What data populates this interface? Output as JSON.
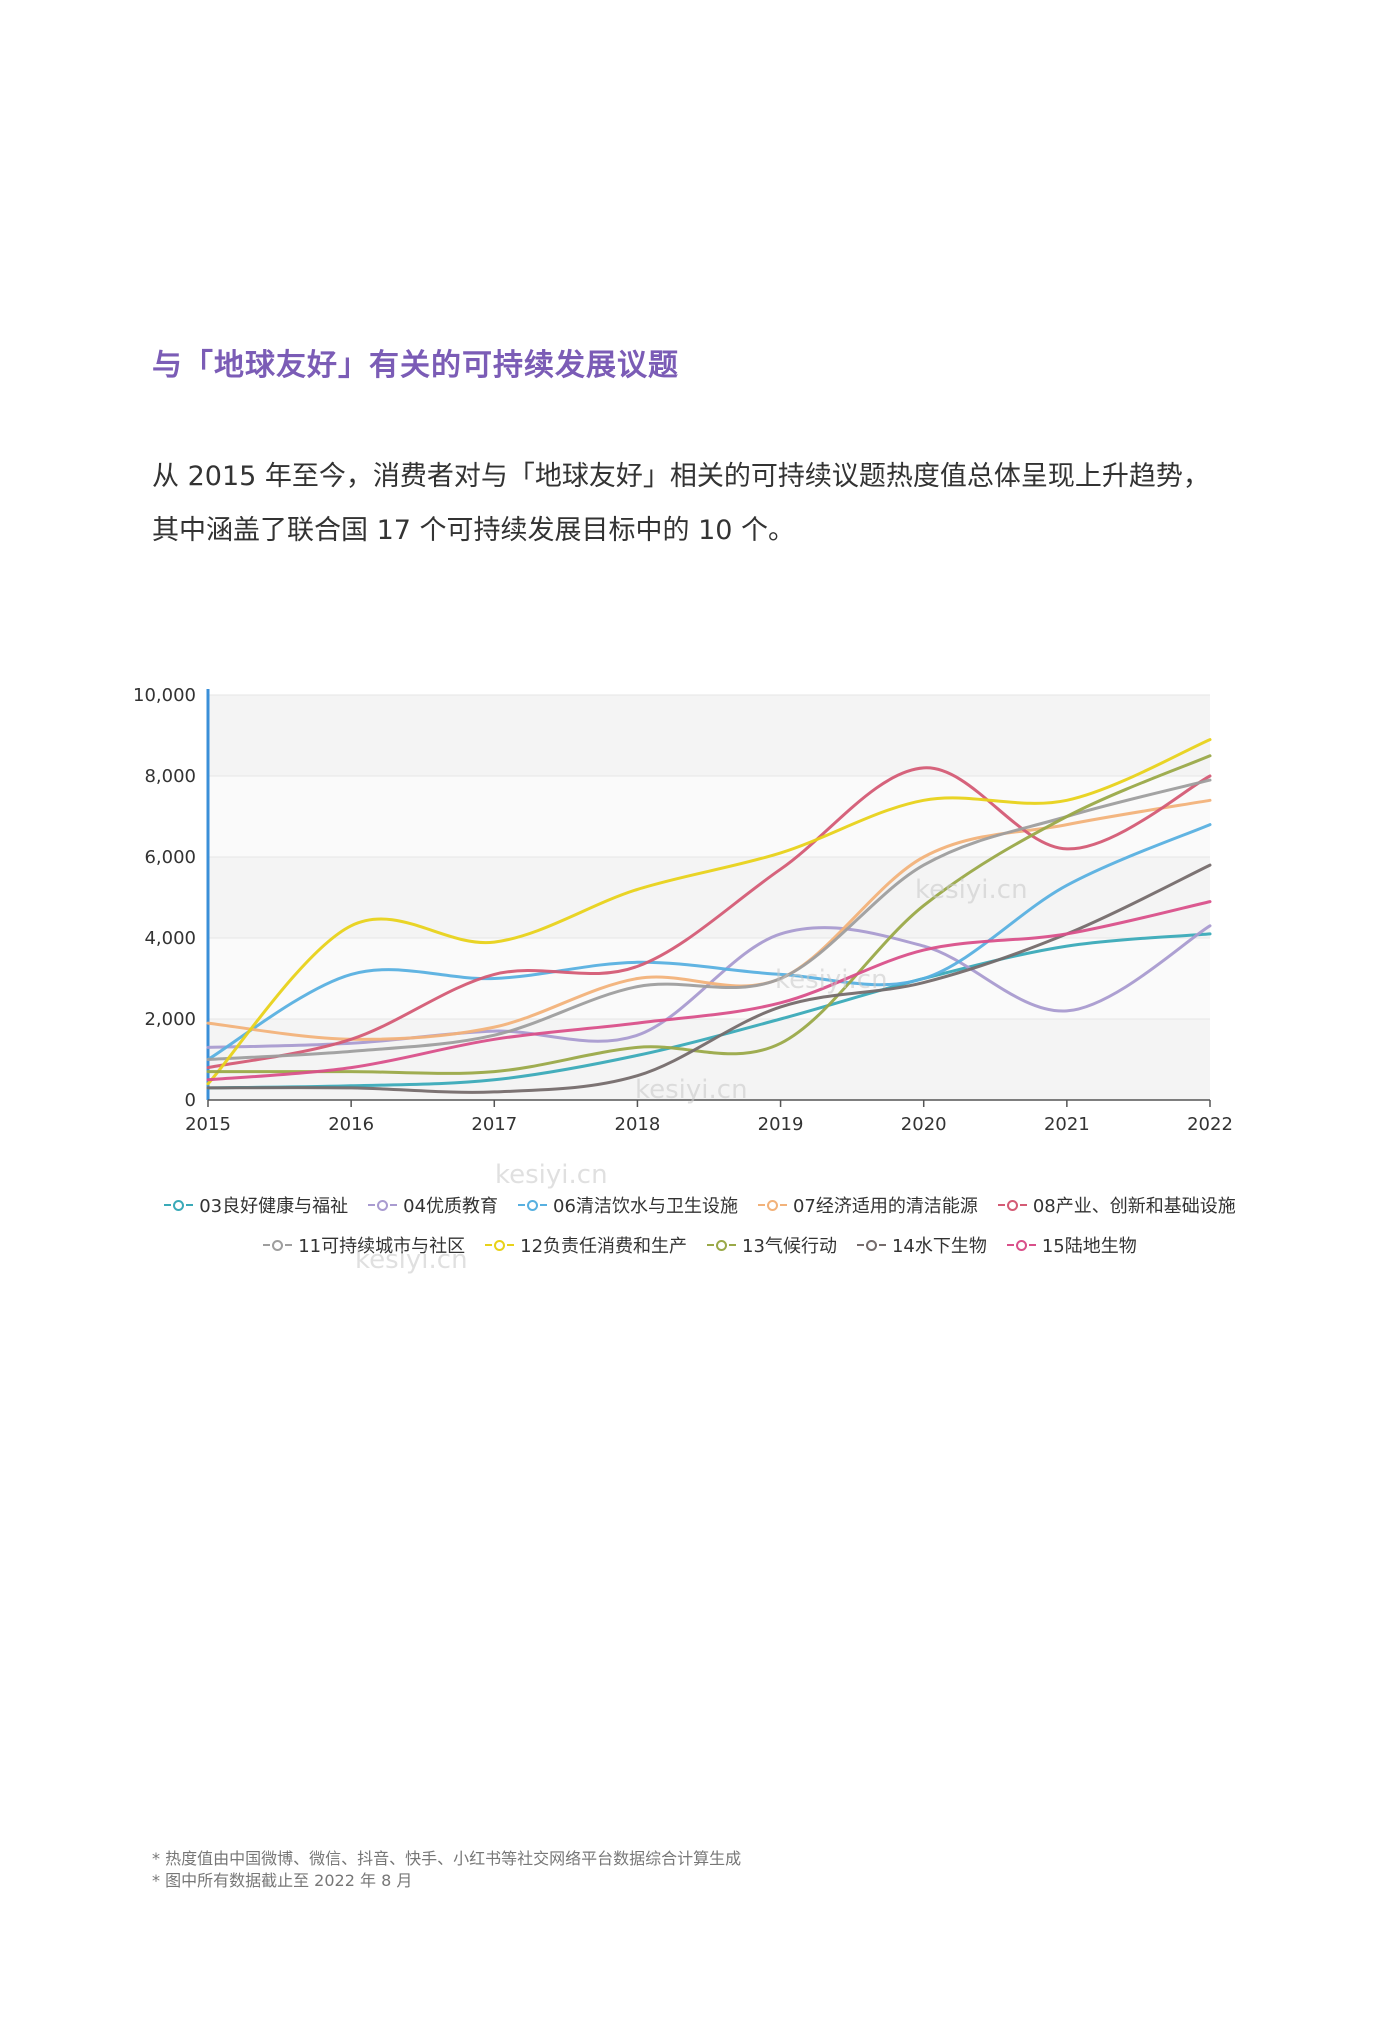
{
  "heading": "与「地球友好」有关的可持续发展议题",
  "intro": {
    "line1": "从 2015 年至今，消费者对与「地球友好」相关的可持续议题热度值总体呈现上升趋势，",
    "line2": "其中涵盖了联合国 17 个可持续发展目标中的 10 个。"
  },
  "watermark": "kesiyi.cn",
  "notes": [
    "* 热度值由中国微博、微信、抖音、快手、小红书等社交网络平台数据综合计算生成",
    "* 图中所有数据截止至 2022 年 8 月"
  ],
  "chart_data": {
    "type": "line",
    "x": [
      "2015",
      "2016",
      "2017",
      "2018",
      "2019",
      "2020",
      "2021",
      "2022"
    ],
    "y_ticks": [
      "0",
      "2,000",
      "4,000",
      "6,000",
      "8,000",
      "10,000"
    ],
    "ylim": [
      0,
      10000
    ],
    "grid": true,
    "legend_position": "bottom",
    "series": [
      {
        "name": "03良好健康与福祉",
        "color": "#3aaab8",
        "values": [
          300,
          350,
          500,
          1100,
          2000,
          3000,
          3800,
          4100
        ]
      },
      {
        "name": "04优质教育",
        "color": "#a99bd0",
        "values": [
          1300,
          1400,
          1700,
          1600,
          4100,
          3800,
          2200,
          4300
        ]
      },
      {
        "name": "06清洁饮水与卫生设施",
        "color": "#58b0e0",
        "values": [
          1000,
          3100,
          3000,
          3400,
          3100,
          3000,
          5300,
          6800
        ]
      },
      {
        "name": "07经济适用的清洁能源",
        "color": "#f2b27a",
        "values": [
          1900,
          1500,
          1800,
          3000,
          3000,
          6000,
          6800,
          7400
        ]
      },
      {
        "name": "08产业、创新和基础设施",
        "color": "#d45b75",
        "values": [
          800,
          1500,
          3100,
          3300,
          5700,
          8200,
          6200,
          8000
        ]
      },
      {
        "name": "11可持续城市与社区",
        "color": "#9e9e9e",
        "values": [
          1000,
          1200,
          1600,
          2800,
          3000,
          5800,
          7000,
          7900
        ]
      },
      {
        "name": "12负责任消费和生产",
        "color": "#e8d21a",
        "values": [
          400,
          4300,
          3900,
          5200,
          6100,
          7400,
          7400,
          8900
        ]
      },
      {
        "name": "13气候行动",
        "color": "#9aa948",
        "values": [
          700,
          700,
          700,
          1300,
          1400,
          4800,
          7000,
          8500
        ]
      },
      {
        "name": "14水下生物",
        "color": "#756c6c",
        "values": [
          300,
          300,
          200,
          600,
          2300,
          2900,
          4100,
          5800
        ]
      },
      {
        "name": "15陆地生物",
        "color": "#d9508a",
        "values": [
          500,
          800,
          1500,
          1900,
          2400,
          3700,
          4100,
          4900
        ]
      }
    ]
  }
}
